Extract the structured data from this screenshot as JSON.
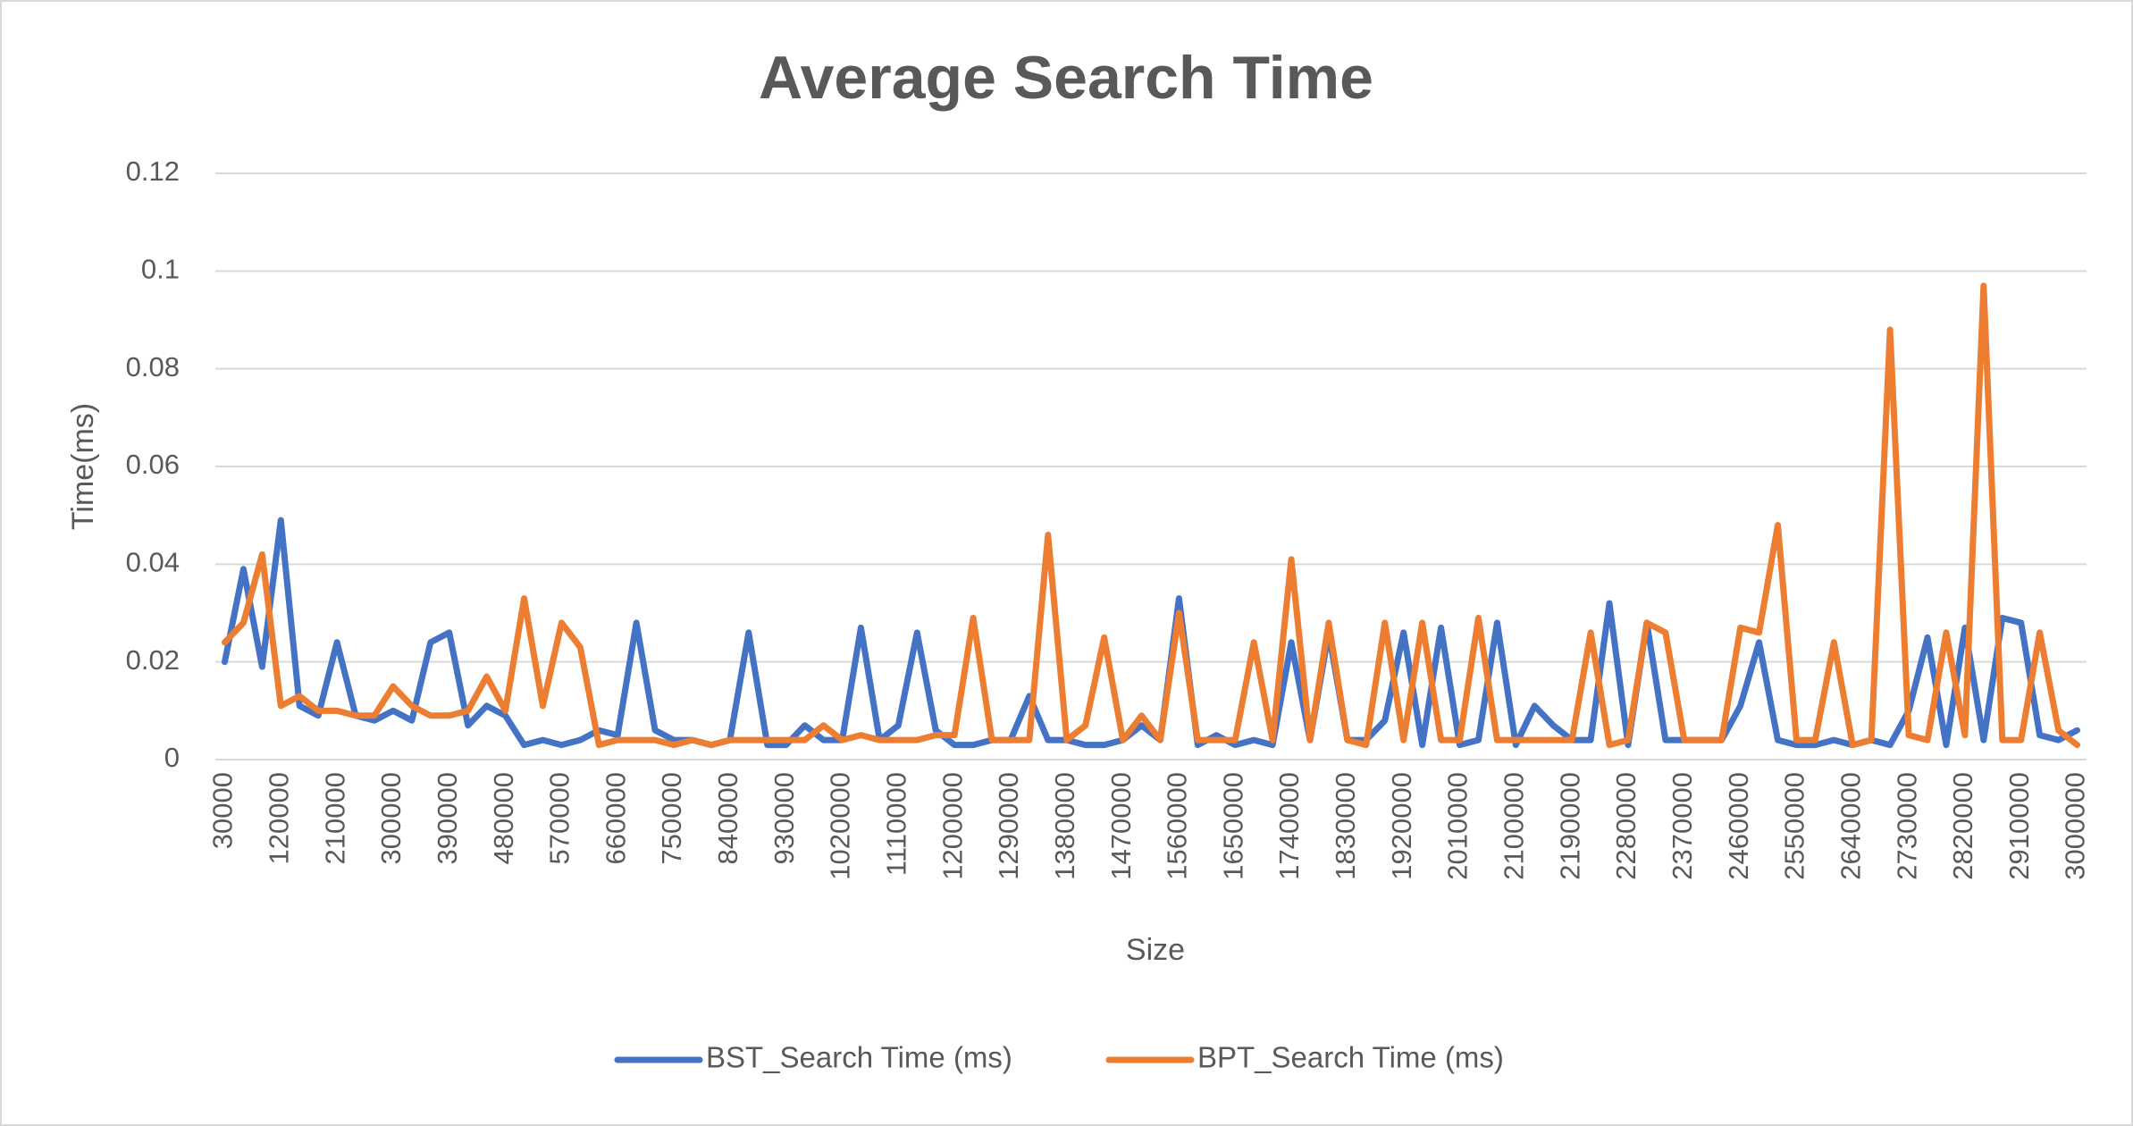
{
  "chart_data": {
    "type": "line",
    "title": "Average Search Time",
    "x_label": "Size",
    "y_label": "Time(ms)",
    "categories": [
      "30000",
      null,
      null,
      "120000",
      null,
      null,
      "210000",
      null,
      null,
      "300000",
      null,
      null,
      "390000",
      null,
      null,
      "480000",
      null,
      null,
      "570000",
      null,
      null,
      "660000",
      null,
      null,
      "750000",
      null,
      null,
      "840000",
      null,
      null,
      "930000",
      null,
      null,
      "1020000",
      null,
      null,
      "1110000",
      null,
      null,
      "1200000",
      null,
      null,
      "1290000",
      null,
      null,
      "1380000",
      null,
      null,
      "1470000",
      null,
      null,
      "1560000",
      null,
      null,
      "1650000",
      null,
      null,
      "1740000",
      null,
      null,
      "1830000",
      null,
      null,
      "1920000",
      null,
      null,
      "2010000",
      null,
      null,
      "2100000",
      null,
      null,
      "2190000",
      null,
      null,
      "2280000",
      null,
      null,
      "2370000",
      null,
      null,
      "2460000",
      null,
      null,
      "2550000",
      null,
      null,
      "2640000",
      null,
      null,
      "2730000",
      null,
      null,
      "2820000",
      null,
      null,
      "2910000",
      null,
      null,
      "3000000"
    ],
    "series": [
      {
        "name": "BST_Search Time (ms)",
        "color": "#4472c4",
        "values": [
          0.02,
          0.039,
          0.019,
          0.049,
          0.011,
          0.009,
          0.024,
          0.009,
          0.008,
          0.01,
          0.008,
          0.024,
          0.026,
          0.007,
          0.011,
          0.009,
          0.003,
          0.004,
          0.003,
          0.004,
          0.006,
          0.005,
          0.028,
          0.006,
          0.004,
          0.004,
          0.003,
          0.004,
          0.026,
          0.003,
          0.003,
          0.007,
          0.004,
          0.004,
          0.027,
          0.004,
          0.007,
          0.026,
          0.006,
          0.003,
          0.003,
          0.004,
          0.004,
          0.013,
          0.004,
          0.004,
          0.003,
          0.003,
          0.004,
          0.007,
          0.004,
          0.033,
          0.003,
          0.005,
          0.003,
          0.004,
          0.003,
          0.024,
          0.004,
          0.026,
          0.004,
          0.004,
          0.008,
          0.026,
          0.003,
          0.027,
          0.003,
          0.004,
          0.028,
          0.003,
          0.011,
          0.007,
          0.004,
          0.004,
          0.032,
          0.003,
          0.028,
          0.004,
          0.004,
          0.004,
          0.004,
          0.011,
          0.024,
          0.004,
          0.003,
          0.003,
          0.004,
          0.003,
          0.004,
          0.003,
          0.01,
          0.025,
          0.003,
          0.027,
          0.004,
          0.029,
          0.028,
          0.005,
          0.004,
          0.006
        ]
      },
      {
        "name": "BPT_Search Time (ms)",
        "color": "#ed7d31",
        "values": [
          0.024,
          0.028,
          0.042,
          0.011,
          0.013,
          0.01,
          0.01,
          0.009,
          0.009,
          0.015,
          0.011,
          0.009,
          0.009,
          0.01,
          0.017,
          0.01,
          0.033,
          0.011,
          0.028,
          0.023,
          0.003,
          0.004,
          0.004,
          0.004,
          0.003,
          0.004,
          0.003,
          0.004,
          0.004,
          0.004,
          0.004,
          0.004,
          0.007,
          0.004,
          0.005,
          0.004,
          0.004,
          0.004,
          0.005,
          0.005,
          0.029,
          0.004,
          0.004,
          0.004,
          0.046,
          0.004,
          0.007,
          0.025,
          0.004,
          0.009,
          0.004,
          0.03,
          0.004,
          0.004,
          0.004,
          0.024,
          0.004,
          0.041,
          0.004,
          0.028,
          0.004,
          0.003,
          0.028,
          0.004,
          0.028,
          0.004,
          0.004,
          0.029,
          0.004,
          0.004,
          0.004,
          0.004,
          0.004,
          0.026,
          0.003,
          0.004,
          0.028,
          0.026,
          0.004,
          0.004,
          0.004,
          0.027,
          0.026,
          0.048,
          0.004,
          0.004,
          0.024,
          0.003,
          0.004,
          0.088,
          0.005,
          0.004,
          0.026,
          0.005,
          0.097,
          0.004,
          0.004,
          0.026,
          0.006,
          0.003
        ]
      }
    ],
    "ylim": [
      0,
      0.12
    ],
    "yticks": [
      0,
      0.02,
      0.04,
      0.06,
      0.08,
      0.1,
      0.12
    ],
    "grid": true,
    "legend": "bottom"
  }
}
